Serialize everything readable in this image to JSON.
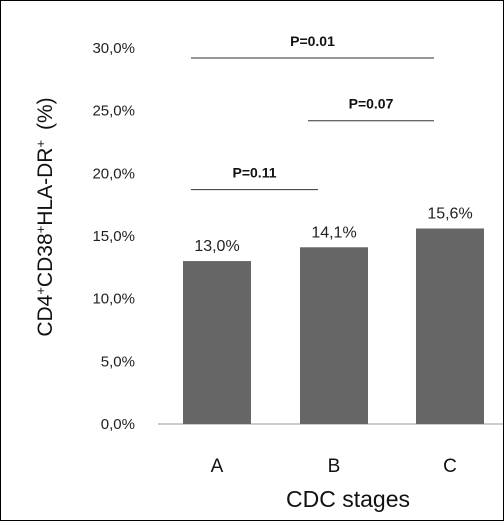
{
  "chart_data": {
    "type": "bar",
    "categories": [
      "A",
      "B",
      "C"
    ],
    "values": [
      13.0,
      14.1,
      15.6
    ],
    "value_labels": [
      "13,0%",
      "14,1%",
      "15,6%"
    ],
    "xlabel": "CDC stages",
    "ylabel": {
      "base": "CD4",
      "s1": "+",
      "mid1": "CD38",
      "s2": "+",
      "mid2": "HLA-DR",
      "s3": "+",
      "unit": "(%)"
    },
    "ylim": [
      0,
      30
    ],
    "yticks": [
      0,
      5,
      10,
      15,
      20,
      25,
      30
    ],
    "ytick_labels": [
      "0,0%",
      "5,0%",
      "10,0%",
      "15,0%",
      "20,0%",
      "25,0%",
      "30,0%"
    ],
    "bar_color": "#666666",
    "grid": false,
    "annotations": [
      {
        "from": "A",
        "to": "B",
        "label": "P=0.11",
        "y": 18.7
      },
      {
        "from": "B",
        "to": "C",
        "label": "P=0.07",
        "y": 24.2
      },
      {
        "from": "A",
        "to": "C",
        "label": "P=0.01",
        "y": 29.2
      }
    ]
  }
}
